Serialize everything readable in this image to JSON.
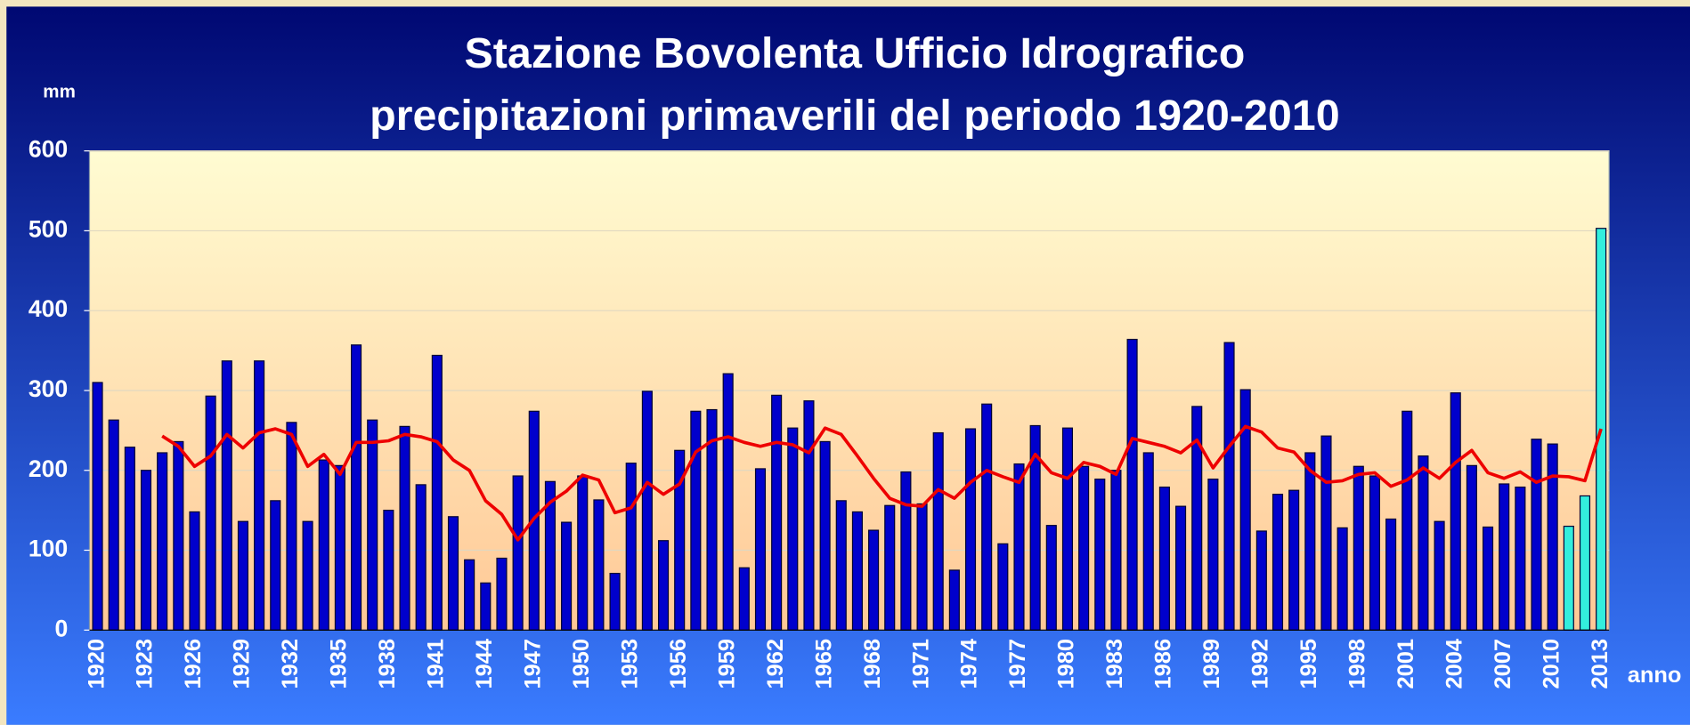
{
  "chart_data": {
    "type": "bar",
    "title": "Stazione Bovolenta Ufficio Idrografico",
    "subtitle": "precipitazioni primaverili del periodo 1920-2010",
    "y_label": "mm",
    "x_label": "anno",
    "categories": [
      "1920",
      null,
      null,
      "1923",
      null,
      null,
      "1926",
      null,
      null,
      "1929",
      null,
      null,
      "1932",
      null,
      null,
      "1935",
      null,
      null,
      "1938",
      null,
      null,
      "1941",
      null,
      null,
      "1944",
      null,
      null,
      "1947",
      null,
      null,
      "1950",
      null,
      null,
      "1953",
      null,
      null,
      "1956",
      null,
      null,
      "1959",
      null,
      null,
      "1962",
      null,
      null,
      "1965",
      null,
      null,
      "1968",
      null,
      null,
      "1971",
      null,
      null,
      "1974",
      null,
      null,
      "1977",
      null,
      null,
      "1980",
      null,
      null,
      "1983",
      null,
      null,
      "1986",
      null,
      null,
      "1989",
      null,
      null,
      "1992",
      null,
      null,
      "1995",
      null,
      null,
      "1998",
      null,
      null,
      "2001",
      null,
      null,
      "2004",
      null,
      null,
      "2007",
      null,
      null,
      "2010",
      null,
      null,
      "2013"
    ],
    "series": [
      {
        "type": "bar",
        "color": "#0000cc",
        "values": [
          310,
          263,
          229,
          200,
          222,
          236,
          148,
          293,
          337,
          136,
          337,
          162,
          260,
          136,
          213,
          206,
          357,
          263,
          150,
          255,
          182,
          344,
          142,
          88,
          59,
          90,
          193,
          274,
          186,
          135,
          193,
          163,
          71,
          209,
          299,
          112,
          225,
          274,
          276,
          321,
          78,
          202,
          294,
          253,
          287,
          236,
          162,
          148,
          125,
          156,
          198,
          158,
          247,
          75,
          252,
          283,
          108,
          208,
          256,
          131,
          253,
          205,
          189,
          200,
          364,
          222,
          179,
          155,
          280,
          189,
          360,
          301,
          124,
          170,
          175,
          222,
          243,
          128,
          205,
          193,
          139,
          274,
          218,
          136,
          297,
          206,
          129,
          183,
          179,
          239,
          233,
          null,
          null,
          null
        ]
      },
      {
        "type": "bar",
        "color": "#33eedd",
        "values": [
          null,
          null,
          null,
          null,
          null,
          null,
          null,
          null,
          null,
          null,
          null,
          null,
          null,
          null,
          null,
          null,
          null,
          null,
          null,
          null,
          null,
          null,
          null,
          null,
          null,
          null,
          null,
          null,
          null,
          null,
          null,
          null,
          null,
          null,
          null,
          null,
          null,
          null,
          null,
          null,
          null,
          null,
          null,
          null,
          null,
          null,
          null,
          null,
          null,
          null,
          null,
          null,
          null,
          null,
          null,
          null,
          null,
          null,
          null,
          null,
          null,
          null,
          null,
          null,
          null,
          null,
          null,
          null,
          null,
          null,
          null,
          null,
          null,
          null,
          null,
          null,
          null,
          null,
          null,
          null,
          null,
          null,
          null,
          null,
          null,
          null,
          null,
          null,
          null,
          null,
          null,
          130,
          168,
          503
        ]
      },
      {
        "type": "line",
        "color": "#ee0000",
        "values": [
          null,
          null,
          null,
          null,
          243,
          230,
          205,
          218,
          245,
          228,
          247,
          252,
          245,
          205,
          220,
          195,
          235,
          235,
          237,
          245,
          242,
          236,
          213,
          200,
          162,
          145,
          113,
          140,
          160,
          174,
          194,
          188,
          147,
          153,
          185,
          170,
          183,
          223,
          237,
          242,
          235,
          230,
          235,
          232,
          222,
          253,
          245,
          218,
          190,
          165,
          157,
          155,
          176,
          165,
          185,
          200,
          192,
          185,
          220,
          197,
          190,
          210,
          205,
          195,
          240,
          235,
          230,
          222,
          238,
          203,
          230,
          255,
          248,
          228,
          223,
          200,
          185,
          187,
          195,
          197,
          180,
          188,
          203,
          190,
          210,
          225,
          197,
          190,
          198,
          185,
          193,
          192,
          187,
          252
        ]
      }
    ],
    "ylim": [
      0,
      600
    ],
    "yticks": [
      0,
      100,
      200,
      300,
      400,
      500,
      600
    ],
    "grid": true
  }
}
